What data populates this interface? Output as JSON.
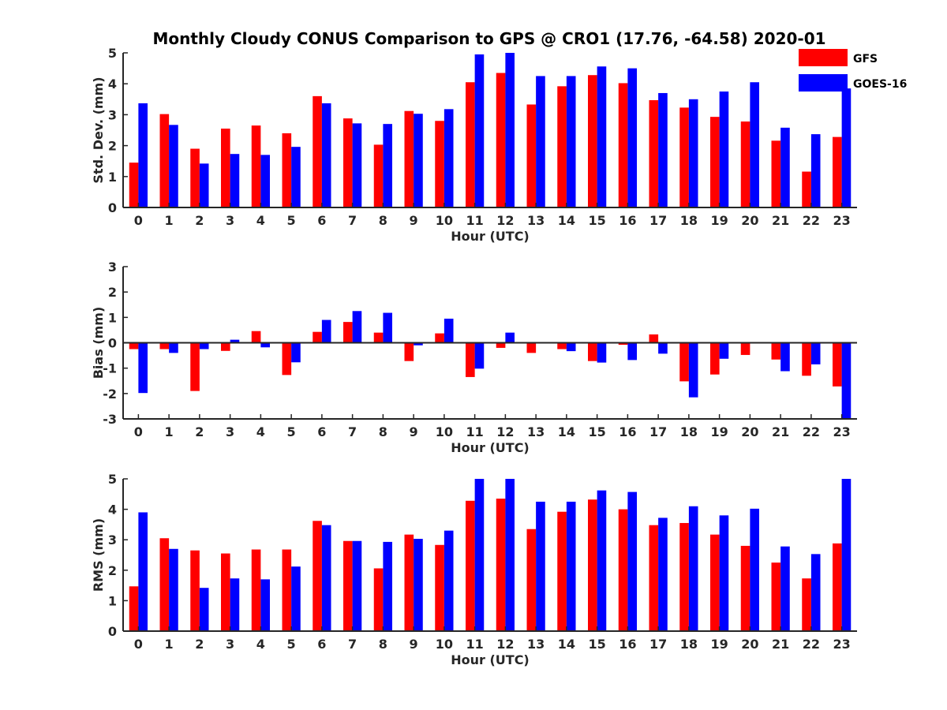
{
  "title": "Monthly Cloudy CONUS Comparison to GPS @ CRO1 (17.76, -64.58) 2020-01",
  "colors": {
    "GFS": "#ff0000",
    "GOES-16": "#0000ff",
    "axis": "#262626"
  },
  "legend": {
    "placement": "top-right",
    "entries": [
      "GFS",
      "GOES-16"
    ]
  },
  "chart_data": [
    {
      "type": "bar",
      "xlabel": "Hour (UTC)",
      "ylabel": "Std. Dev. (mm)",
      "ylim": [
        0,
        5
      ],
      "yticks": [
        0,
        1,
        2,
        3,
        4,
        5
      ],
      "categories": [
        "0",
        "1",
        "2",
        "3",
        "4",
        "5",
        "6",
        "7",
        "8",
        "9",
        "10",
        "11",
        "12",
        "13",
        "14",
        "15",
        "16",
        "17",
        "18",
        "19",
        "20",
        "21",
        "22",
        "23"
      ],
      "series": [
        {
          "name": "GFS",
          "values": [
            1.45,
            3.02,
            1.9,
            2.55,
            2.65,
            2.4,
            3.6,
            2.88,
            2.03,
            3.12,
            2.8,
            4.05,
            4.35,
            3.33,
            3.92,
            4.28,
            4.02,
            3.47,
            3.23,
            2.93,
            2.78,
            2.16,
            1.16,
            2.28
          ]
        },
        {
          "name": "GOES-16",
          "values": [
            3.37,
            2.67,
            1.42,
            1.73,
            1.7,
            1.96,
            3.37,
            2.72,
            2.7,
            3.03,
            3.18,
            4.95,
            5.0,
            4.25,
            4.25,
            4.56,
            4.5,
            3.7,
            3.5,
            3.75,
            4.05,
            2.58,
            2.37,
            3.85
          ]
        }
      ]
    },
    {
      "type": "bar",
      "xlabel": "Hour (UTC)",
      "ylabel": "Bias (mm)",
      "ylim": [
        -3,
        3
      ],
      "yticks": [
        -3,
        -2,
        -1,
        0,
        1,
        2,
        3
      ],
      "zero_line": true,
      "categories": [
        "0",
        "1",
        "2",
        "3",
        "4",
        "5",
        "6",
        "7",
        "8",
        "9",
        "10",
        "11",
        "12",
        "13",
        "14",
        "15",
        "16",
        "17",
        "18",
        "19",
        "20",
        "21",
        "22",
        "23"
      ],
      "series": [
        {
          "name": "GFS",
          "values": [
            -0.25,
            -0.25,
            -1.9,
            -0.32,
            0.46,
            -1.27,
            0.43,
            0.82,
            0.4,
            -0.72,
            0.37,
            -1.35,
            -0.2,
            -0.4,
            -0.25,
            -0.72,
            -0.08,
            0.33,
            -1.52,
            -1.25,
            -0.48,
            -0.66,
            -1.3,
            -1.72
          ]
        },
        {
          "name": "GOES-16",
          "values": [
            -1.98,
            -0.4,
            -0.25,
            0.12,
            -0.18,
            -0.77,
            0.9,
            1.25,
            1.18,
            -0.1,
            0.95,
            -1.02,
            0.4,
            0.03,
            -0.33,
            -0.78,
            -0.68,
            -0.43,
            -2.15,
            -0.63,
            0.0,
            -1.12,
            -0.85,
            -3.0
          ]
        }
      ]
    },
    {
      "type": "bar",
      "xlabel": "Hour (UTC)",
      "ylabel": "RMS (mm)",
      "ylim": [
        0,
        5
      ],
      "yticks": [
        0,
        1,
        2,
        3,
        4,
        5
      ],
      "categories": [
        "0",
        "1",
        "2",
        "3",
        "4",
        "5",
        "6",
        "7",
        "8",
        "9",
        "10",
        "11",
        "12",
        "13",
        "14",
        "15",
        "16",
        "17",
        "18",
        "19",
        "20",
        "21",
        "22",
        "23"
      ],
      "series": [
        {
          "name": "GFS",
          "values": [
            1.47,
            3.05,
            2.65,
            2.55,
            2.68,
            2.68,
            3.62,
            2.96,
            2.06,
            3.17,
            2.83,
            4.28,
            4.35,
            3.35,
            3.92,
            4.32,
            4.0,
            3.48,
            3.55,
            3.17,
            2.8,
            2.25,
            1.73,
            2.88
          ]
        },
        {
          "name": "GOES-16",
          "values": [
            3.9,
            2.7,
            1.42,
            1.73,
            1.7,
            2.12,
            3.48,
            2.96,
            2.93,
            3.03,
            3.3,
            5.0,
            5.0,
            4.25,
            4.25,
            4.62,
            4.57,
            3.72,
            4.1,
            3.8,
            4.02,
            2.78,
            2.53,
            5.0
          ]
        }
      ]
    }
  ]
}
